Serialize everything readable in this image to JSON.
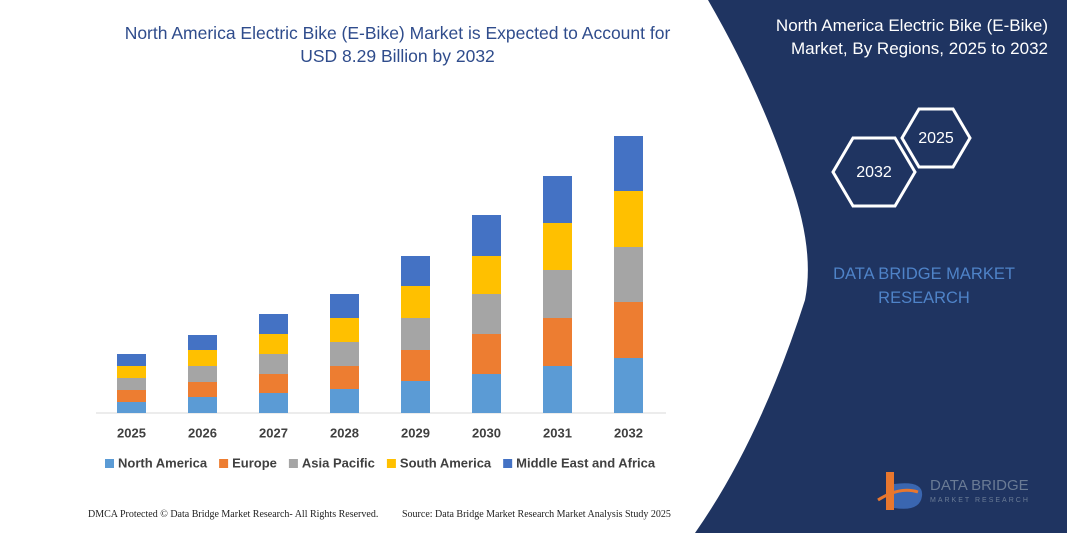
{
  "chart_data": {
    "type": "stacked_bar",
    "title": "North America Electric Bike (E-Bike) Market is Expected to Account for USD 8.29 Billion by 2032",
    "categories": [
      "2025",
      "2026",
      "2027",
      "2028",
      "2029",
      "2030",
      "2031",
      "2032"
    ],
    "series": [
      {
        "name": "North America",
        "color": "#5b9bd5",
        "values": [
          11,
          16,
          20,
          24,
          32,
          39,
          47,
          55
        ]
      },
      {
        "name": "Europe",
        "color": "#ed7d31",
        "values": [
          12,
          15,
          19,
          23,
          31,
          40,
          48,
          56
        ]
      },
      {
        "name": "Asia Pacific",
        "color": "#a5a5a5",
        "values": [
          12,
          16,
          20,
          24,
          32,
          40,
          48,
          55
        ]
      },
      {
        "name": "South America",
        "color": "#ffc000",
        "values": [
          12,
          16,
          20,
          24,
          32,
          38,
          47,
          56
        ]
      },
      {
        "name": "Middle East and Africa",
        "color": "#4472c4",
        "values": [
          12,
          15,
          20,
          24,
          30,
          41,
          47,
          55
        ]
      }
    ],
    "legend": "bottom"
  },
  "panel": {
    "title": "North America Electric Bike (E-Bike) Market, By Regions, 2025 to 2032",
    "hex_right": "2025",
    "hex_left": "2032",
    "brand": "DATA BRIDGE MARKET RESEARCH"
  },
  "logo": {
    "name": "DATA BRIDGE",
    "tagline": "MARKET RESEARCH"
  },
  "footer": {
    "left": "DMCA Protected © Data Bridge Market Research-  All Rights Reserved.",
    "right": "Source: Data Bridge Market Research  Market Analysis Study 2025"
  }
}
